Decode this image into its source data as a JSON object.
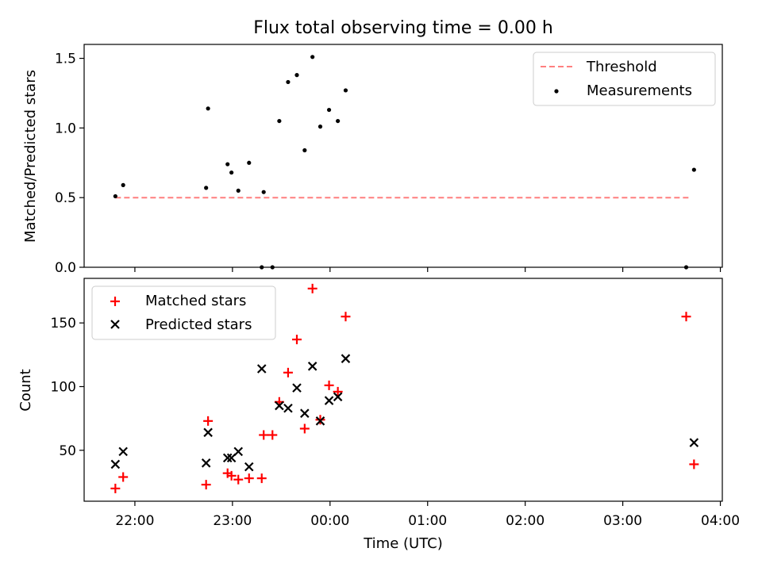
{
  "chart_data": [
    {
      "type": "scatter",
      "title": "Flux total observing time = 0.00 h",
      "ylabel": "Matched/Predicted stars",
      "ylim": [
        0,
        1.6
      ],
      "yticks": [
        0,
        0.5,
        1.0,
        1.5
      ],
      "ytick_labels": [
        "0.0",
        "0.5",
        "1.0",
        "1.5"
      ],
      "xlim_hours": [
        21.48,
        28.02
      ],
      "legend_position": "upper right",
      "colors": {
        "threshold": "#ff7f7f",
        "measurements": "#000000"
      },
      "series": [
        {
          "name": "Threshold",
          "style": "dashed-line",
          "points": [
            [
              21.8,
              0.5
            ],
            [
              27.7,
              0.5
            ]
          ]
        },
        {
          "name": "Measurements",
          "style": "dot",
          "points": [
            [
              21.8,
              0.51
            ],
            [
              21.88,
              0.59
            ],
            [
              22.73,
              0.57
            ],
            [
              22.75,
              1.14
            ],
            [
              22.95,
              0.74
            ],
            [
              22.99,
              0.68
            ],
            [
              23.06,
              0.55
            ],
            [
              23.17,
              0.75
            ],
            [
              23.3,
              0.0
            ],
            [
              23.32,
              0.54
            ],
            [
              23.41,
              0.0
            ],
            [
              23.48,
              1.05
            ],
            [
              23.57,
              1.33
            ],
            [
              23.66,
              1.38
            ],
            [
              23.74,
              0.84
            ],
            [
              23.82,
              1.51
            ],
            [
              23.9,
              1.01
            ],
            [
              23.99,
              1.13
            ],
            [
              24.08,
              1.05
            ],
            [
              24.16,
              1.27
            ],
            [
              27.65,
              0.0
            ],
            [
              27.73,
              0.7
            ]
          ]
        }
      ]
    },
    {
      "type": "scatter",
      "ylabel": "Count",
      "xlabel": "Time (UTC)",
      "ylim": [
        10,
        185
      ],
      "yticks": [
        50,
        100,
        150
      ],
      "ytick_labels": [
        "50",
        "100",
        "150"
      ],
      "xlim_hours": [
        21.48,
        28.02
      ],
      "xticks": [
        22,
        23,
        24,
        25,
        26,
        27,
        28
      ],
      "xtick_labels": [
        "22:00",
        "23:00",
        "00:00",
        "01:00",
        "02:00",
        "03:00",
        "04:00"
      ],
      "legend_position": "upper left",
      "colors": {
        "matched": "#ff0000",
        "predicted": "#000000"
      },
      "series": [
        {
          "name": "Matched stars",
          "marker": "plus",
          "points": [
            [
              21.8,
              20
            ],
            [
              21.88,
              29
            ],
            [
              22.73,
              23
            ],
            [
              22.75,
              73
            ],
            [
              22.95,
              32
            ],
            [
              22.99,
              30
            ],
            [
              23.06,
              27
            ],
            [
              23.17,
              28
            ],
            [
              23.3,
              28
            ],
            [
              23.32,
              62
            ],
            [
              23.41,
              62
            ],
            [
              23.48,
              88
            ],
            [
              23.57,
              111
            ],
            [
              23.66,
              137
            ],
            [
              23.74,
              67
            ],
            [
              23.82,
              177
            ],
            [
              23.9,
              74
            ],
            [
              23.99,
              101
            ],
            [
              24.08,
              96
            ],
            [
              24.16,
              155
            ],
            [
              27.65,
              155
            ],
            [
              27.73,
              39
            ]
          ]
        },
        {
          "name": "Predicted stars",
          "marker": "x",
          "points": [
            [
              21.8,
              39
            ],
            [
              21.88,
              49
            ],
            [
              22.73,
              40
            ],
            [
              22.75,
              64
            ],
            [
              22.95,
              44
            ],
            [
              22.99,
              44
            ],
            [
              23.06,
              49
            ],
            [
              23.17,
              37
            ],
            [
              23.3,
              114
            ],
            [
              23.48,
              85
            ],
            [
              23.57,
              83
            ],
            [
              23.66,
              99
            ],
            [
              23.74,
              79
            ],
            [
              23.82,
              116
            ],
            [
              23.9,
              73
            ],
            [
              23.99,
              89
            ],
            [
              24.08,
              92
            ],
            [
              24.16,
              122
            ],
            [
              27.73,
              56
            ]
          ]
        }
      ]
    }
  ]
}
